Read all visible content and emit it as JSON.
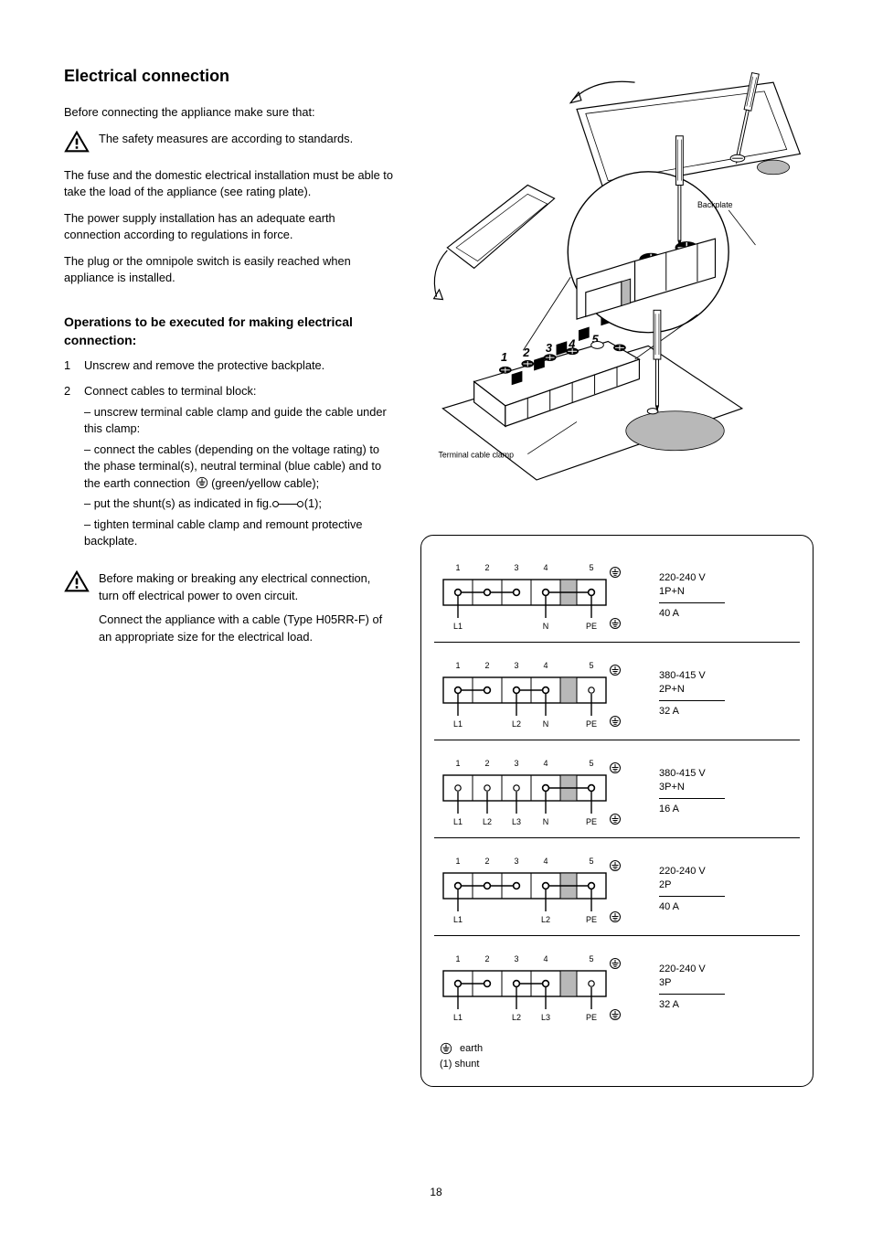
{
  "colors": {
    "text": "#000000",
    "bg": "#ffffff",
    "shade": "#b8b8b8",
    "stroke": "#000000"
  },
  "title": "Electrical connection",
  "para1": "Before connecting the appliance make sure that:",
  "warning1": "The safety measures are according to standards.",
  "warning2": "The fuse and the domestic electrical installation must be able to take the load of the appliance (see rating plate).",
  "warning3": "The power supply installation has an adequate earth connection according to regulations in force.",
  "warning4": "The plug or the omnipole switch is easily reached when appliance is installed.",
  "sub_cable": "Operations to be executed for making electrical connection:",
  "step1_num": "1",
  "step1": "Unscrew and remove the protective backplate.",
  "step2_num": "2",
  "step2_a": "Connect cables to terminal block:",
  "step2_b": "unscrew terminal cable clamp and guide the cable under this clamp:",
  "step2_c": "connect the cables (depending on the voltage rating) to the phase terminal(s), neutral terminal (blue cable) and to the earth connection",
  "step2_d": "(green/yellow cable);",
  "step2_e": "put the shunt(s) as indicated in fig. ",
  "step2_f": "(1);",
  "step2_g": "tighten terminal cable clamp and remount protective backplate.",
  "warn_bottom_a": "Before making or breaking any electrical connection, turn off electrical power to oven circuit.",
  "warn_bottom_b": "Connect the appliance with a cable (Type H05RR-F) of an appropriate size for the electrical load.",
  "fig_labels": {
    "backplate": "Backplate",
    "terminal": "Terminal cable clamp"
  },
  "terminal_numbers": [
    "1",
    "2",
    "3",
    "4",
    "5"
  ],
  "wiring": [
    {
      "wires": [
        "L1",
        "",
        "",
        "N",
        "PE"
      ],
      "shunts": [
        [
          1,
          2,
          3
        ],
        [
          4,
          5
        ]
      ],
      "volt_top": "220-240 V",
      "volt_bot": "1P+N",
      "fuse": "40 A"
    },
    {
      "wires": [
        "L1",
        "",
        "L2",
        "N",
        "PE"
      ],
      "shunts": [
        [
          1,
          2
        ],
        [
          3,
          4
        ]
      ],
      "hasN": true,
      "volt_top": "380-415 V",
      "volt_bot": "2P+N",
      "fuse": "32 A"
    },
    {
      "wires": [
        "L1",
        "L2",
        "L3",
        "N",
        "PE"
      ],
      "shunts": [
        [
          4,
          5
        ]
      ],
      "volt_top": "380-415 V",
      "volt_bot": "3P+N",
      "fuse": "16 A"
    },
    {
      "wires": [
        "L1",
        "",
        "",
        "L2",
        "PE"
      ],
      "shunts": [
        [
          1,
          2,
          3
        ],
        [
          4,
          5
        ]
      ],
      "volt_top": "220-240 V",
      "volt_bot": "2P",
      "fuse": "40 A"
    },
    {
      "wires": [
        "L1",
        "",
        "L2",
        "L3",
        "PE"
      ],
      "shunts": [
        [
          1,
          2
        ],
        [
          3,
          4
        ]
      ],
      "volt_top": "220-240 V",
      "volt_bot": "3P",
      "fuse": "32 A"
    }
  ],
  "legend_earth": "earth",
  "legend_shunt": "(1) shunt",
  "page_number": "18"
}
